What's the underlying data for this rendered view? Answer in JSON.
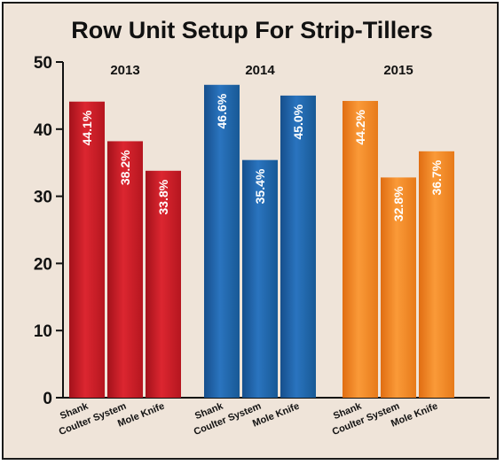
{
  "chart_data": {
    "type": "bar",
    "title": "Row Unit Setup For Strip-Tillers",
    "xlabel": "",
    "ylabel": "",
    "ylim": [
      0,
      50
    ],
    "yticks": [
      0,
      10,
      20,
      30,
      40,
      50
    ],
    "grid": false,
    "groups": [
      {
        "name": "2013",
        "color": "#d01c26",
        "categories": [
          "Shank",
          "Coulter System",
          "Mole Knife"
        ],
        "values": [
          44.1,
          38.2,
          33.8
        ],
        "labels": [
          "44.1%",
          "38.2%",
          "33.8%"
        ]
      },
      {
        "name": "2014",
        "color": "#1f67b1",
        "categories": [
          "Shank",
          "Coulter System",
          "Mole Knife"
        ],
        "values": [
          46.6,
          35.4,
          45.0
        ],
        "labels": [
          "46.6%",
          "35.4%",
          "45.0%"
        ]
      },
      {
        "name": "2015",
        "color": "#f58a23",
        "categories": [
          "Shank",
          "Coulter System",
          "Mole Knife"
        ],
        "values": [
          44.2,
          32.8,
          36.7
        ],
        "labels": [
          "44.2%",
          "32.8%",
          "36.7%"
        ]
      }
    ]
  }
}
